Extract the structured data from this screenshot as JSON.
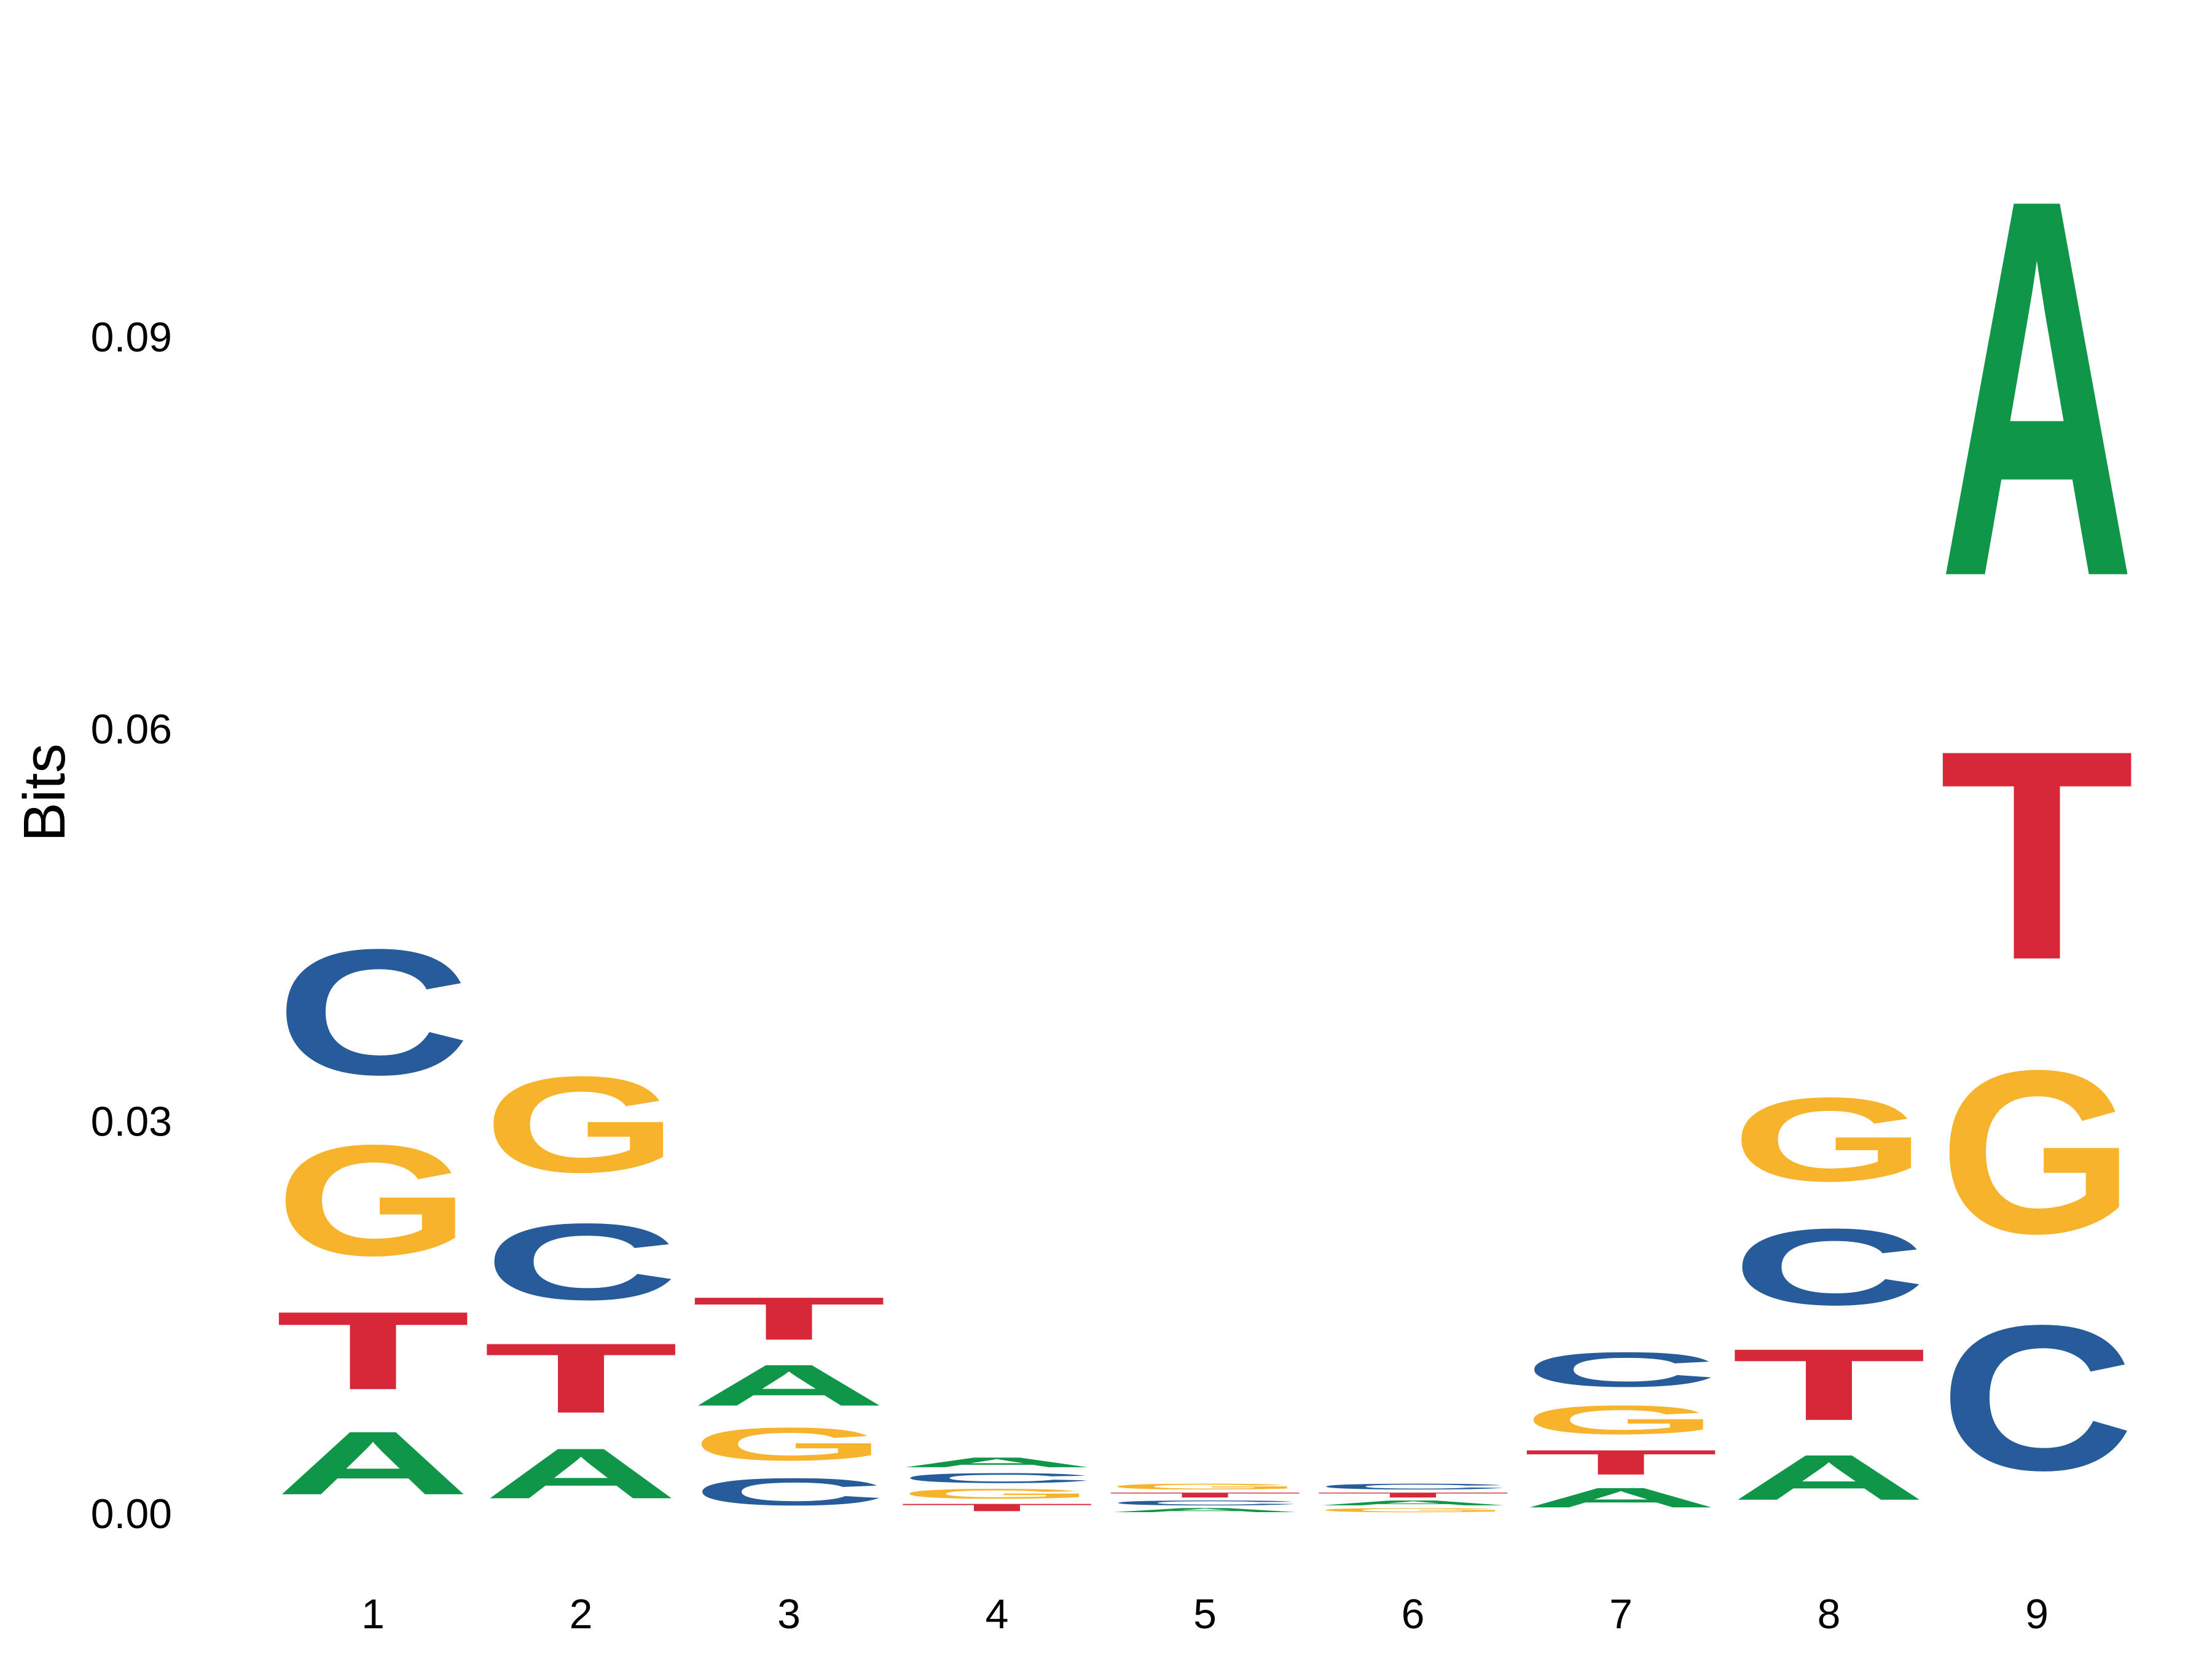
{
  "chart_data": {
    "type": "sequence-logo",
    "title": "",
    "xlabel": "",
    "ylabel": "Bits",
    "ylim": [
      0,
      0.11
    ],
    "yticks": [
      "0.00",
      "0.03",
      "0.06",
      "0.09"
    ],
    "ytick_values": [
      0,
      0.03,
      0.06,
      0.09
    ],
    "positions": [
      "1",
      "2",
      "3",
      "4",
      "5",
      "6",
      "7",
      "8",
      "9"
    ],
    "grid": false,
    "colors": {
      "A": "#109648",
      "C": "#255C99",
      "G": "#F7B32B",
      "T": "#D62839"
    },
    "stacks": [
      [
        {
          "letter": "A",
          "bits": 0.0077
        },
        {
          "letter": "T",
          "bits": 0.0095
        },
        {
          "letter": "G",
          "bits": 0.0135
        },
        {
          "letter": "C",
          "bits": 0.0153
        }
      ],
      [
        {
          "letter": "A",
          "bits": 0.0061
        },
        {
          "letter": "T",
          "bits": 0.0085
        },
        {
          "letter": "C",
          "bits": 0.0093
        },
        {
          "letter": "G",
          "bits": 0.0117
        }
      ],
      [
        {
          "letter": "C",
          "bits": 0.0033
        },
        {
          "letter": "G",
          "bits": 0.004
        },
        {
          "letter": "A",
          "bits": 0.005
        },
        {
          "letter": "T",
          "bits": 0.0052
        }
      ],
      [
        {
          "letter": "T",
          "bits": 0.0009
        },
        {
          "letter": "G",
          "bits": 0.0012
        },
        {
          "letter": "C",
          "bits": 0.0012
        },
        {
          "letter": "A",
          "bits": 0.0012
        }
      ],
      [
        {
          "letter": "A",
          "bits": 0.0005
        },
        {
          "letter": "C",
          "bits": 0.0006
        },
        {
          "letter": "T",
          "bits": 0.0006
        },
        {
          "letter": "G",
          "bits": 0.0007
        }
      ],
      [
        {
          "letter": "G",
          "bits": 0.0005
        },
        {
          "letter": "A",
          "bits": 0.0006
        },
        {
          "letter": "T",
          "bits": 0.0006
        },
        {
          "letter": "C",
          "bits": 0.0007
        }
      ],
      [
        {
          "letter": "A",
          "bits": 0.0024
        },
        {
          "letter": "T",
          "bits": 0.003
        },
        {
          "letter": "G",
          "bits": 0.0035
        },
        {
          "letter": "C",
          "bits": 0.0042
        }
      ],
      [
        {
          "letter": "A",
          "bits": 0.0055
        },
        {
          "letter": "T",
          "bits": 0.0087
        },
        {
          "letter": "C",
          "bits": 0.0093
        },
        {
          "letter": "G",
          "bits": 0.0102
        }
      ],
      [
        {
          "letter": "C",
          "bits": 0.0177
        },
        {
          "letter": "G",
          "bits": 0.0199
        },
        {
          "letter": "T",
          "bits": 0.0255
        },
        {
          "letter": "A",
          "bits": 0.046
        }
      ]
    ]
  }
}
